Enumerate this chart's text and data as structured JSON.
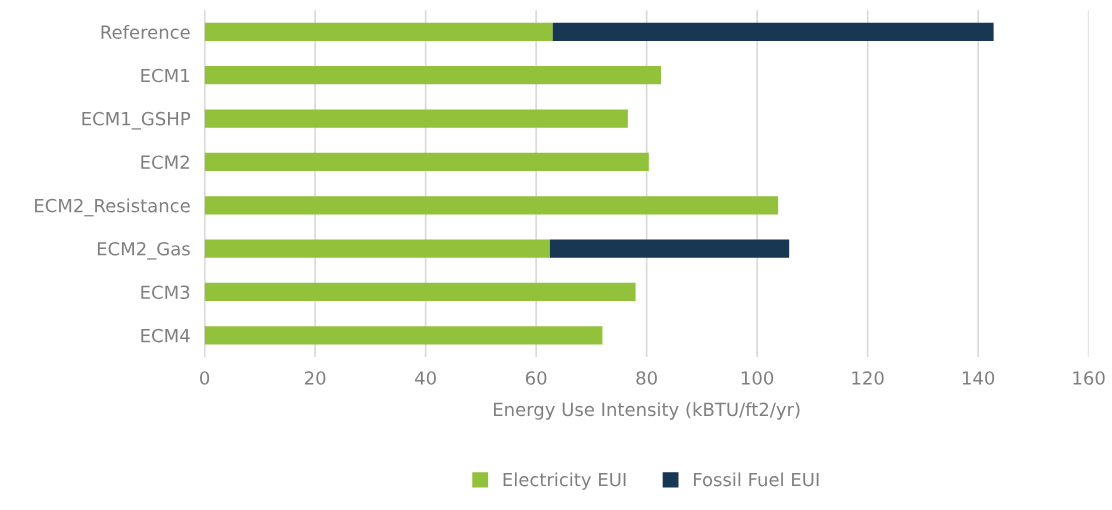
{
  "chart_data": {
    "type": "bar",
    "orientation": "horizontal",
    "stacked": true,
    "categories": [
      "Reference",
      "ECM1",
      "ECM1_GSHP",
      "ECM2",
      "ECM2_Resistance",
      "ECM2_Gas",
      "ECM3",
      "ECM4"
    ],
    "series": [
      {
        "name": "Electricity EUI",
        "color": "#92c13b",
        "values": [
          63.0,
          82.6,
          76.6,
          80.4,
          103.8,
          62.5,
          78.0,
          72.0
        ]
      },
      {
        "name": "Fossil Fuel EUI",
        "color": "#173753",
        "values": [
          79.8,
          null,
          null,
          null,
          null,
          43.3,
          null,
          null
        ]
      }
    ],
    "xlabel": "Energy Use Intensity (kBTU/ft2/yr)",
    "xlim": [
      0,
      160
    ],
    "xticks": [
      0,
      20,
      40,
      60,
      80,
      100,
      120,
      140,
      160
    ],
    "grid": "x",
    "legend": "bottom"
  }
}
